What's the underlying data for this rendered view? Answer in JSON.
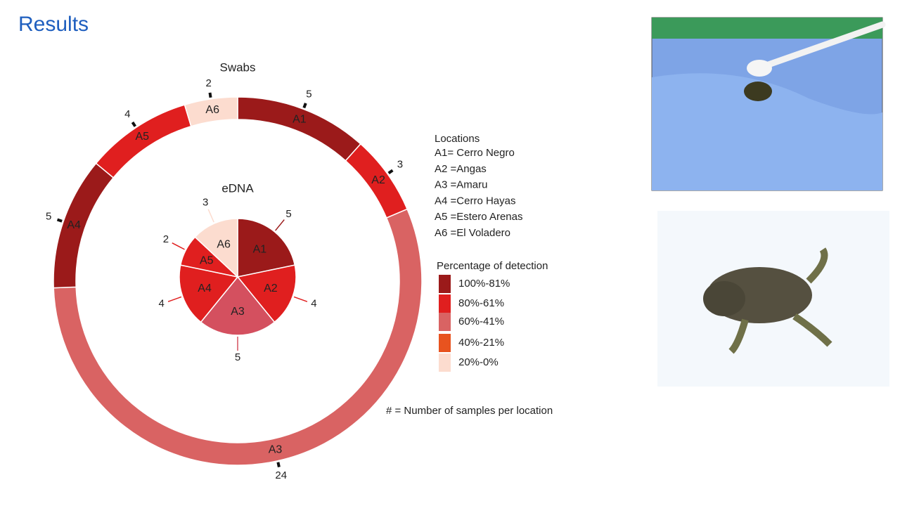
{
  "title": "Results",
  "chart_data": [
    {
      "type": "donut",
      "title": "Swabs",
      "categories": [
        "A1",
        "A2",
        "A3",
        "A4",
        "A5",
        "A6"
      ],
      "values": [
        5,
        3,
        24,
        5,
        4,
        2
      ],
      "colors": [
        "#9b1a1a",
        "#e01f1f",
        "#d96363",
        "#9b1a1a",
        "#e01f1f",
        "#fcdccf"
      ]
    },
    {
      "type": "pie",
      "title": "eDNA",
      "categories": [
        "A1",
        "A2",
        "A3",
        "A4",
        "A5",
        "A6"
      ],
      "values": [
        5,
        4,
        5,
        4,
        2,
        3
      ],
      "colors": [
        "#9b1a1a",
        "#e01f1f",
        "#d4505f",
        "#e01f1f",
        "#e01f1f",
        "#fcdccf"
      ]
    }
  ],
  "locations": {
    "title": "Locations",
    "items": [
      "A1= Cerro Negro",
      "A2 =Angas",
      "A3 =Amaru",
      "A4 =Cerro Hayas",
      "A5 =Estero Arenas",
      "A6 =El Voladero"
    ]
  },
  "detection_legend": {
    "title": "Percentage of detection",
    "items": [
      {
        "label": "100%-81%",
        "color": "#9b1a1a"
      },
      {
        "label": "80%-61%",
        "color": "#e01f1f"
      },
      {
        "label": "60%-41%",
        "color": "#d96363"
      },
      {
        "label": "40%-21%",
        "color": "#e8531f"
      },
      {
        "label": "20%-0%",
        "color": "#fcdccf"
      }
    ]
  },
  "note": "# = Number of samples per location"
}
